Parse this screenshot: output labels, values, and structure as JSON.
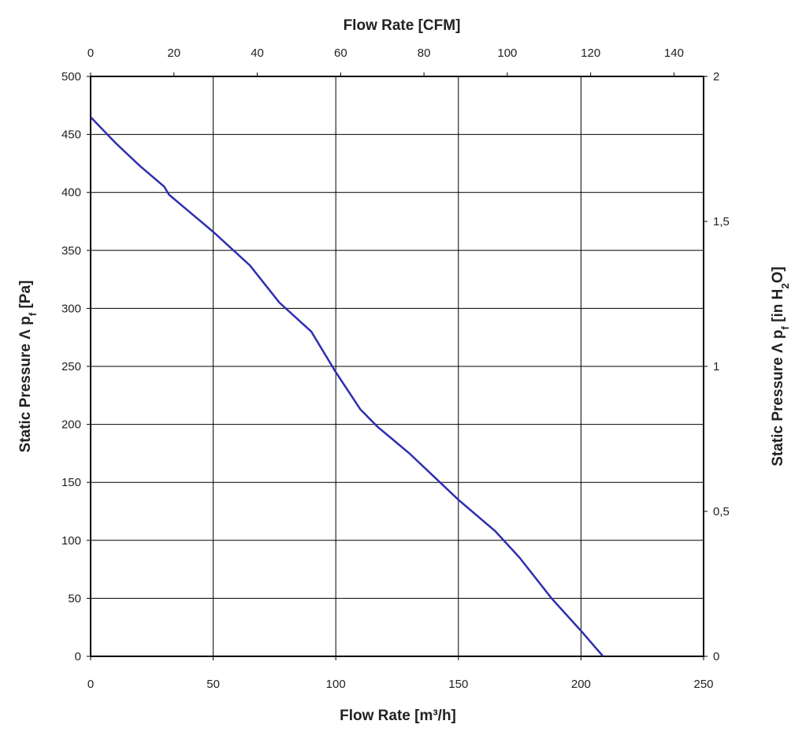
{
  "chart_data": {
    "type": "line",
    "xlabel": "Flow Rate [m³/h]",
    "x2label": "Flow Rate [CFM]",
    "ylabel": [
      "Static Pressure Λ p",
      "f",
      " [Pa]"
    ],
    "y2label": [
      "Static Pressure Λ p",
      "f",
      " [in H",
      "2",
      "O]"
    ],
    "x": [
      0,
      10,
      20,
      30,
      32,
      50,
      65,
      77,
      90,
      100,
      110,
      117,
      130,
      140,
      150,
      165,
      175,
      188,
      200,
      209
    ],
    "series": [
      {
        "color": "#2e2eb0",
        "values": [
          465,
          443,
          423,
          405,
          398,
          366,
          337,
          305,
          280,
          245,
          213,
          198,
          175,
          155,
          135,
          108,
          85,
          50,
          22,
          0
        ]
      }
    ],
    "xlim": [
      0,
      250
    ],
    "xticks": [
      0,
      50,
      100,
      150,
      200,
      250
    ],
    "x2lim": [
      0,
      147.1
    ],
    "x2ticks": [
      0,
      20,
      40,
      60,
      80,
      100,
      120,
      140
    ],
    "ylim": [
      0,
      500
    ],
    "yticks": [
      0,
      50,
      100,
      150,
      200,
      250,
      300,
      350,
      400,
      450,
      500
    ],
    "y2lim": [
      0,
      2
    ],
    "y2ticks": [
      0,
      {
        "value": 0.5,
        "label": "0,5"
      },
      1,
      {
        "value": 1.5,
        "label": "1,5"
      },
      2
    ],
    "grid": true
  }
}
